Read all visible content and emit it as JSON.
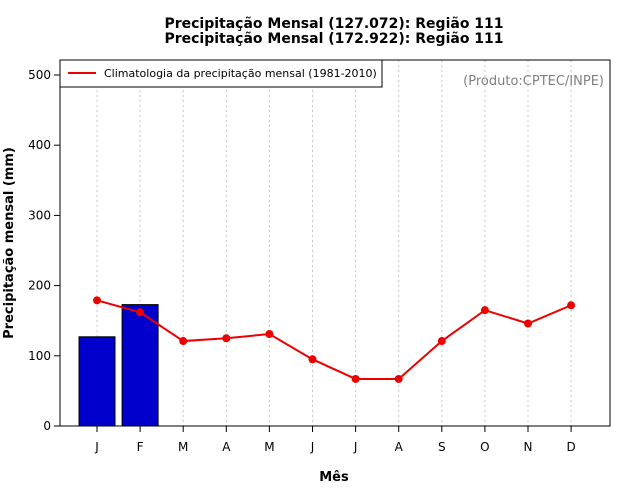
{
  "chart_data": {
    "type": "bar",
    "title_lines": [
      "Precipitação Mensal (127.072): Região 111",
      "Precipitação Mensal (172.922): Região 111"
    ],
    "xlabel": "Mês",
    "ylabel": "Precipitação mensal (mm)",
    "ylim": [
      0,
      500
    ],
    "yticks": [
      0,
      100,
      200,
      300,
      400,
      500
    ],
    "categories": [
      "J",
      "F",
      "M",
      "A",
      "M",
      "J",
      "J",
      "A",
      "S",
      "O",
      "N",
      "D"
    ],
    "bars": {
      "values": [
        127.072,
        172.922
      ],
      "color": "#0000cc"
    },
    "series": [
      {
        "name": "Climatologia da precipitação mensal (1981-2010)",
        "type": "line",
        "color": "#ee0000",
        "values": [
          179,
          162,
          121,
          125,
          131,
          95,
          67,
          67,
          121,
          165,
          146,
          172
        ]
      }
    ],
    "grid": "vertical-dotted",
    "legend_position": "top-left",
    "source_note": "(Produto:CPTEC/INPE)"
  }
}
